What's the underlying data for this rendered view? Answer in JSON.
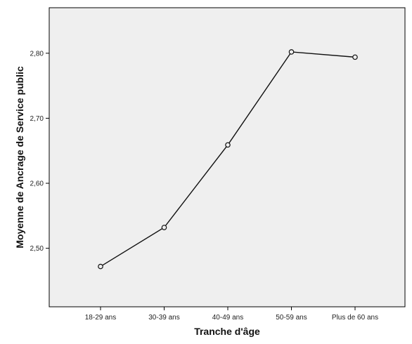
{
  "chart_data": {
    "type": "line",
    "title": "",
    "xlabel": "Tranche d'âge",
    "ylabel": "Moyenne de Ancrage de Service public",
    "categories": [
      "18-29 ans",
      "30-39 ans",
      "40-49 ans",
      "50-59 ans",
      "Plus de 60 ans"
    ],
    "series": [
      {
        "values": [
          2.472,
          2.532,
          2.659,
          2.802,
          2.794
        ]
      }
    ],
    "ylim": [
      2.41,
      2.87
    ],
    "yticks": [
      2.5,
      2.6,
      2.7,
      2.8
    ],
    "ytick_labels": [
      "2,50",
      "2,60",
      "2,70",
      "2,80"
    ],
    "grid": false,
    "legend": "none",
    "markers": "circle",
    "colors": {
      "plot_background": "#efefef",
      "line": "#111111",
      "axis": "#000000"
    }
  }
}
